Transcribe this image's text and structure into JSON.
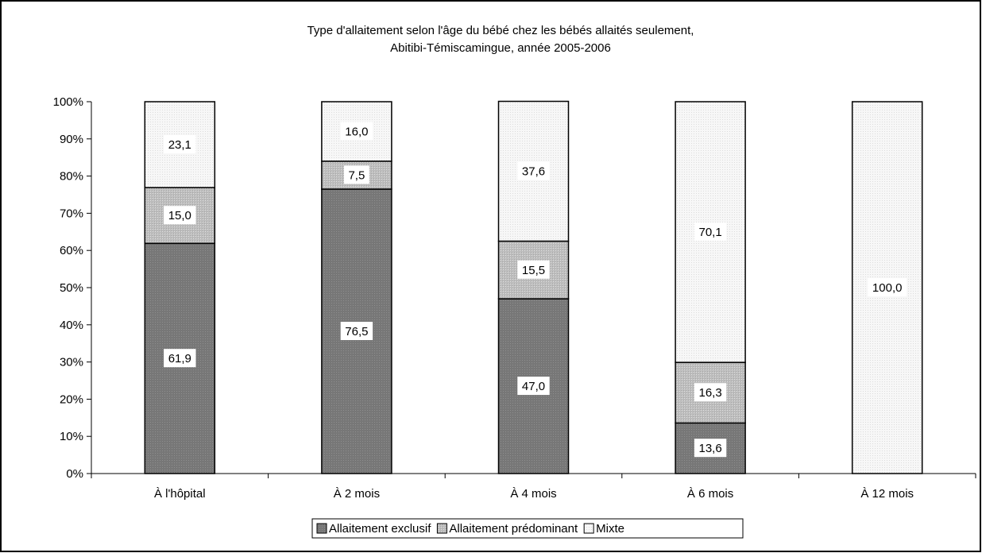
{
  "chart_data": {
    "type": "bar",
    "stacked": true,
    "title": "Type d'allaitement selon l'âge du bébé chez les bébés allaités seulement,",
    "subtitle": "Abitibi-Témiscamingue, année 2005-2006",
    "xlabel": "",
    "ylabel": "",
    "ylim": [
      0,
      100
    ],
    "y_ticks": [
      "0%",
      "10%",
      "20%",
      "30%",
      "40%",
      "50%",
      "60%",
      "70%",
      "80%",
      "90%",
      "100%"
    ],
    "grid": false,
    "legend_position": "bottom",
    "categories": [
      "À l'hôpital",
      "À 2 mois",
      "À 4 mois",
      "À 6 mois",
      "À 12 mois"
    ],
    "series": [
      {
        "name": "Allaitement exclusif",
        "values": [
          61.9,
          76.5,
          47.0,
          13.6,
          0
        ],
        "labels": [
          "61,9",
          "76,5",
          "47,0",
          "13,6",
          ""
        ],
        "color": "#7f7f7f"
      },
      {
        "name": "Allaitement prédominant",
        "values": [
          15.0,
          7.5,
          15.5,
          16.3,
          0
        ],
        "labels": [
          "15,0",
          "7,5",
          "15,5",
          "16,3",
          ""
        ],
        "color": "#c8c8c8"
      },
      {
        "name": "Mixte",
        "values": [
          23.1,
          16.0,
          37.6,
          70.1,
          100.0
        ],
        "labels": [
          "23,1",
          "16,0",
          "37,6",
          "70,1",
          "100,0"
        ],
        "color": "#f2f2f2"
      }
    ]
  }
}
